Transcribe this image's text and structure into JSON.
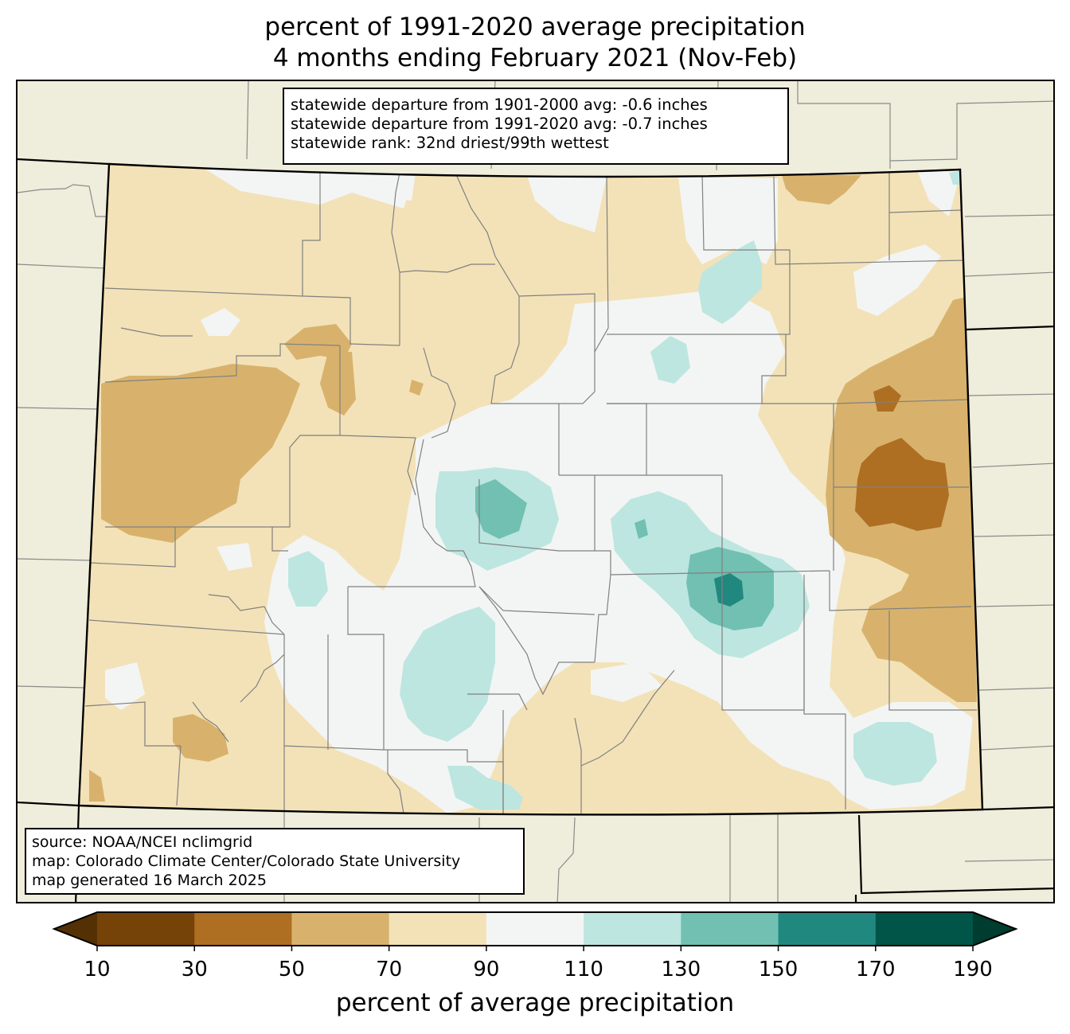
{
  "title": {
    "line1": "percent of 1991-2020 average precipitation",
    "line2": "4 months ending February 2021 (Nov-Feb)"
  },
  "stats_box": {
    "line1": "statewide departure from 1901-2000 avg: -0.6 inches",
    "line2": "statewide departure from 1991-2020 avg: -0.7 inches",
    "line3": "statewide rank: 32nd driest/99th wettest"
  },
  "source_box": {
    "line1": "source: NOAA/NCEI nclimgrid",
    "line2": "map: Colorado Climate Center/Colorado State University",
    "line3": "map generated 16 March 2025"
  },
  "colorbar": {
    "label": "percent of average precipitation",
    "ticks": [
      "10",
      "30",
      "50",
      "70",
      "90",
      "110",
      "130",
      "150",
      "170",
      "190"
    ],
    "under_color": "#543005",
    "over_color": "#003c30",
    "bins": [
      {
        "range": "10-30",
        "color": "#754308"
      },
      {
        "range": "30-50",
        "color": "#ae6f22"
      },
      {
        "range": "50-70",
        "color": "#d8b26c"
      },
      {
        "range": "70-90",
        "color": "#f3e2b8"
      },
      {
        "range": "90-110",
        "color": "#f3f5f4"
      },
      {
        "range": "110-130",
        "color": "#bde6e0"
      },
      {
        "range": "130-150",
        "color": "#71c0b2"
      },
      {
        "range": "150-170",
        "color": "#218880"
      },
      {
        "range": "170-190",
        "color": "#005548"
      }
    ]
  },
  "map": {
    "background_color": "#efeddb",
    "state": "Colorado"
  }
}
